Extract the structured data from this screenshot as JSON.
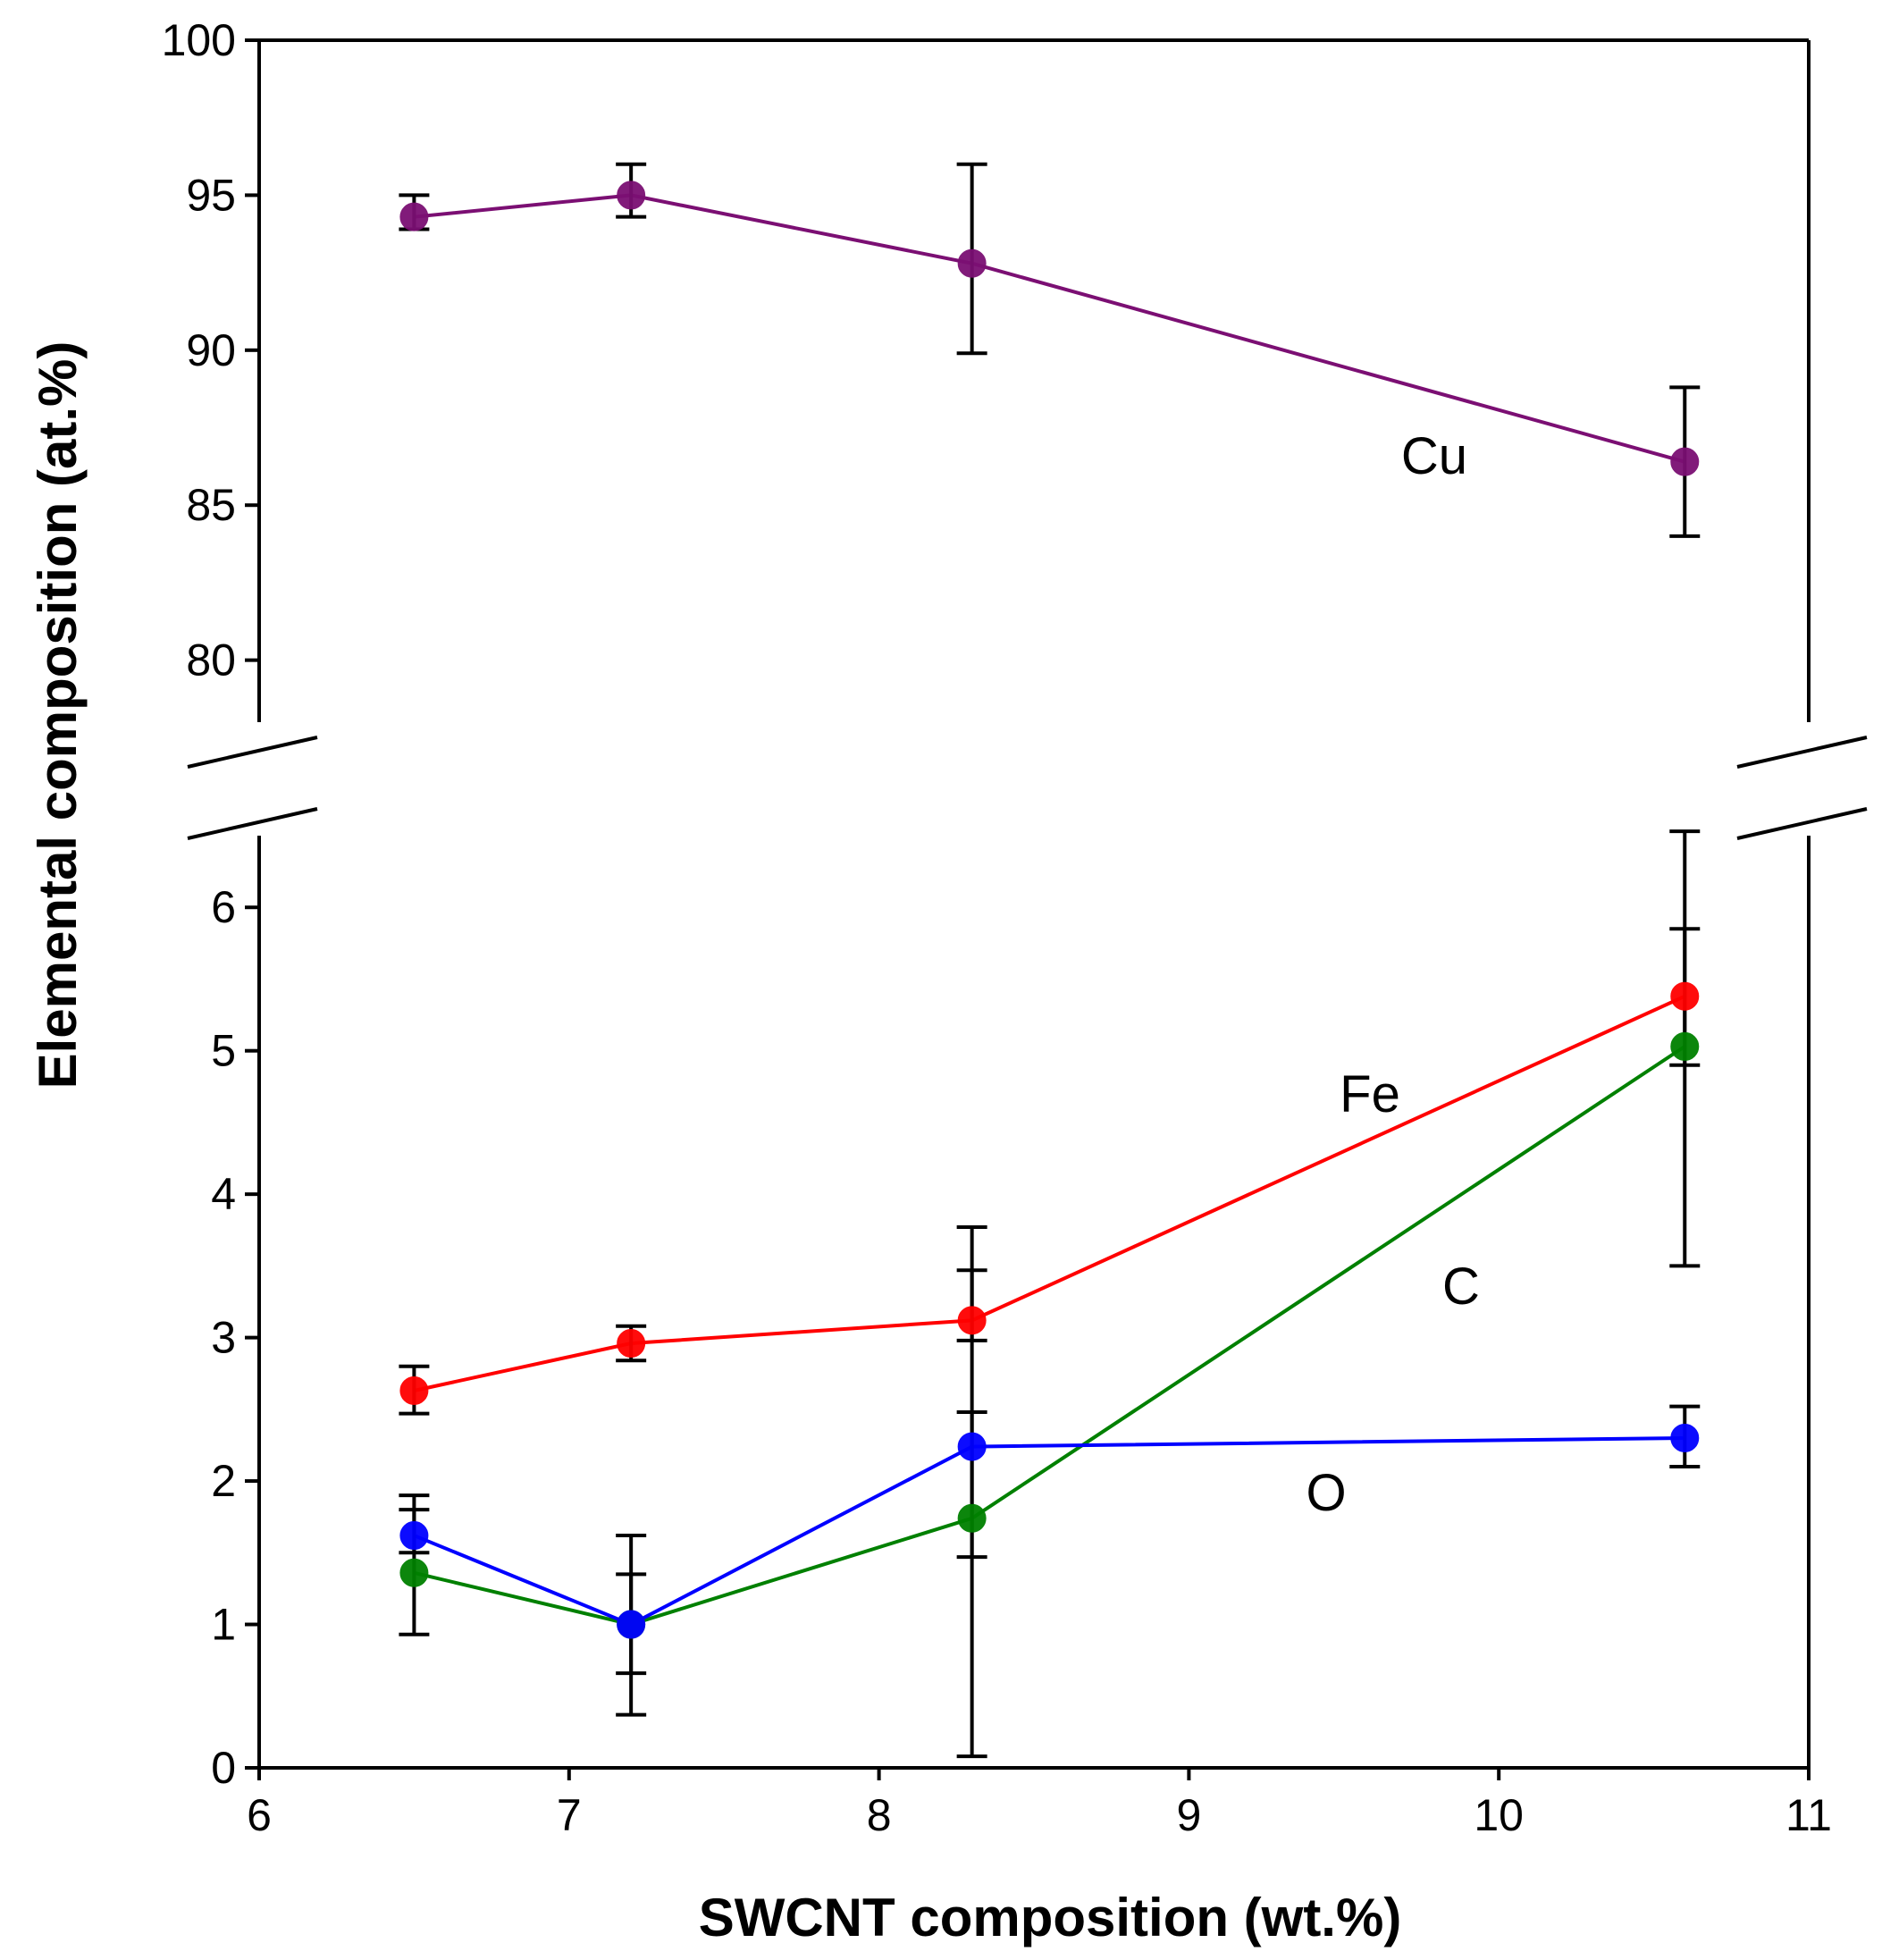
{
  "chart_data": {
    "type": "line",
    "xlabel": "SWCNT composition (wt.%)",
    "ylabel": "Elemental composition (at.%)",
    "xlim": [
      6,
      11
    ],
    "x_ticks": [
      6,
      7,
      8,
      9,
      10,
      11
    ],
    "axis_break": true,
    "panels": {
      "upper": {
        "ylim": [
          78,
          100
        ],
        "y_ticks": [
          80,
          85,
          90,
          95,
          100
        ]
      },
      "lower": {
        "ylim": [
          0,
          6.5
        ],
        "y_ticks": [
          0,
          1,
          2,
          3,
          4,
          5,
          6
        ]
      }
    },
    "series": [
      {
        "name": "Cu",
        "label": "Cu",
        "panel": "upper",
        "color": "#7b0f73",
        "x": [
          6.5,
          7.2,
          8.3,
          10.6
        ],
        "y": [
          94.3,
          95.0,
          92.8,
          86.4
        ],
        "err_low": [
          93.9,
          94.3,
          89.9,
          84.0
        ],
        "err_high": [
          95.0,
          96.0,
          96.0,
          88.8
        ]
      },
      {
        "name": "Fe",
        "label": "Fe",
        "panel": "lower",
        "color": "#ff0000",
        "x": [
          6.5,
          7.2,
          8.3,
          10.6
        ],
        "y": [
          2.63,
          2.96,
          3.12,
          5.38
        ],
        "err_low": [
          2.47,
          2.84,
          2.98,
          4.9
        ],
        "err_high": [
          2.8,
          3.08,
          3.47,
          5.85
        ]
      },
      {
        "name": "C",
        "label": "C",
        "panel": "lower",
        "color": "#008000",
        "x": [
          6.5,
          7.2,
          8.3,
          10.6
        ],
        "y": [
          1.36,
          1.0,
          1.74,
          5.03
        ],
        "err_low": [
          0.93,
          0.37,
          0.08,
          3.5
        ],
        "err_high": [
          1.8,
          1.62,
          3.77,
          6.53
        ]
      },
      {
        "name": "O",
        "label": "O",
        "panel": "lower",
        "color": "#0000ff",
        "x": [
          6.5,
          7.2,
          8.3,
          10.6
        ],
        "y": [
          1.62,
          1.0,
          2.24,
          2.3
        ],
        "err_low": [
          1.5,
          0.66,
          1.47,
          2.1
        ],
        "err_high": [
          1.9,
          1.35,
          2.48,
          2.52
        ]
      }
    ]
  }
}
